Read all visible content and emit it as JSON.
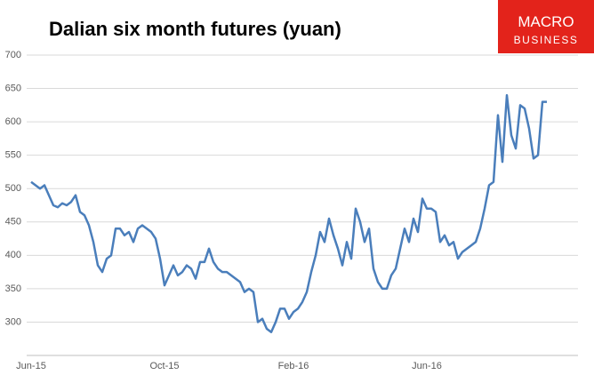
{
  "logo": {
    "line1": "MACRO",
    "line2": "BUSINESS"
  },
  "chart_data": {
    "type": "line",
    "title": "Dalian six month futures (yuan)",
    "color": "#4a7ebb",
    "grid": true,
    "ylim": [
      250,
      700
    ],
    "yticks": [
      300,
      350,
      400,
      450,
      500,
      550,
      600,
      650,
      700
    ],
    "categories": [
      "Jun-15",
      null,
      null,
      null,
      null,
      null,
      null,
      null,
      null,
      null,
      null,
      null,
      null,
      null,
      null,
      null,
      null,
      null,
      null,
      null,
      null,
      null,
      null,
      null,
      null,
      null,
      null,
      null,
      null,
      null,
      "Oct-15",
      null,
      null,
      null,
      null,
      null,
      null,
      null,
      null,
      null,
      null,
      null,
      null,
      null,
      null,
      null,
      null,
      null,
      null,
      null,
      null,
      null,
      null,
      null,
      null,
      null,
      null,
      null,
      null,
      "Feb-16",
      null,
      null,
      null,
      null,
      null,
      null,
      null,
      null,
      null,
      null,
      null,
      null,
      null,
      null,
      null,
      null,
      null,
      null,
      null,
      null,
      null,
      null,
      null,
      null,
      null,
      null,
      null,
      null,
      null,
      "Jun-16",
      null,
      null,
      null,
      null,
      null,
      null,
      null,
      null,
      null,
      null,
      null,
      null,
      null,
      null,
      null,
      null,
      null,
      null,
      null,
      null,
      null,
      null,
      null,
      null,
      null,
      null,
      null
    ],
    "values": [
      510,
      505,
      500,
      505,
      490,
      475,
      472,
      478,
      475,
      480,
      490,
      465,
      460,
      445,
      420,
      385,
      375,
      395,
      400,
      440,
      440,
      430,
      435,
      420,
      440,
      445,
      440,
      435,
      425,
      395,
      355,
      370,
      385,
      370,
      375,
      385,
      380,
      365,
      390,
      390,
      410,
      390,
      380,
      375,
      375,
      370,
      365,
      360,
      345,
      350,
      345,
      300,
      305,
      290,
      285,
      300,
      320,
      320,
      305,
      315,
      320,
      330,
      345,
      375,
      400,
      435,
      420,
      455,
      430,
      410,
      385,
      420,
      395,
      470,
      450,
      420,
      440,
      380,
      360,
      350,
      350,
      370,
      380,
      410,
      440,
      420,
      455,
      435,
      485,
      470,
      470,
      465,
      420,
      430,
      415,
      420,
      395,
      405,
      410,
      415,
      420,
      440,
      470,
      505,
      510,
      610,
      540,
      640,
      580,
      560,
      625,
      620,
      590,
      545,
      550,
      630,
      630
    ]
  }
}
